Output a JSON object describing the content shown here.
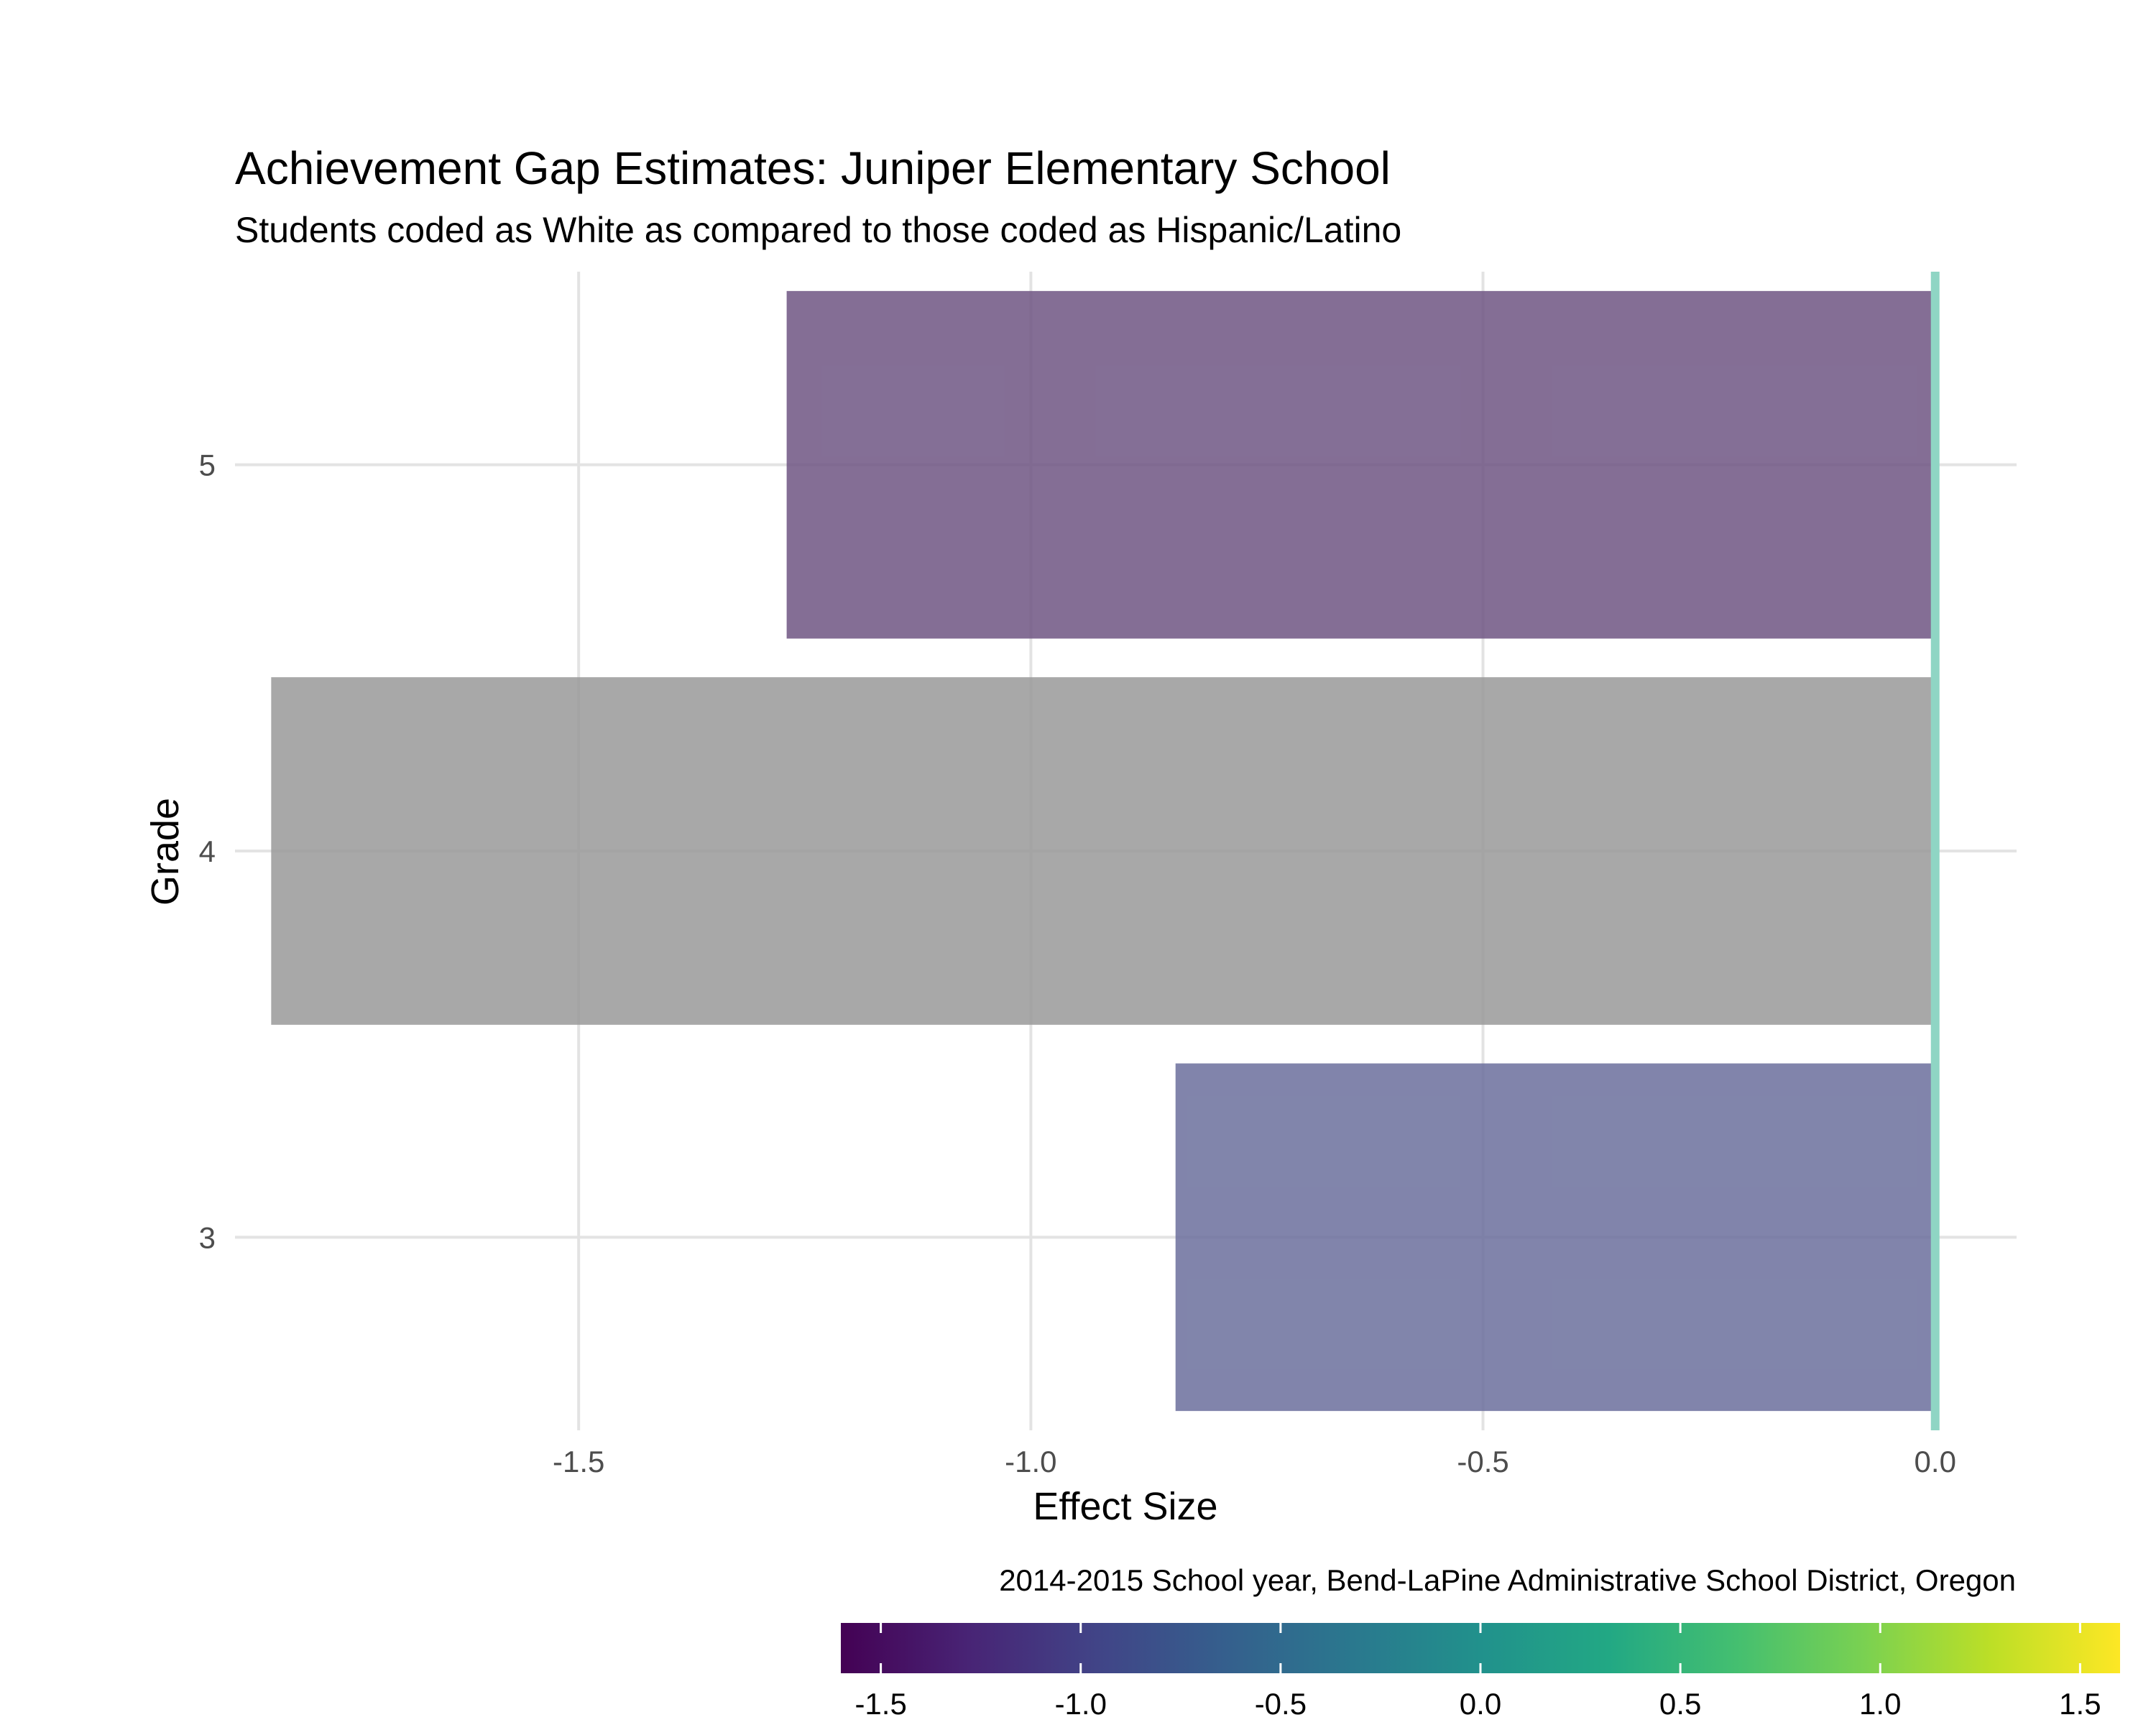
{
  "chart_data": {
    "type": "bar",
    "orientation": "horizontal",
    "title": "Achievement Gap Estimates: Juniper Elementary School",
    "subtitle": "Students coded as White as compared to those coded as Hispanic/Latino",
    "xlabel": "Effect Size",
    "ylabel": "Grade",
    "caption": "2014-2015 School year, Bend-LaPine Administrative School District, Oregon",
    "categories": [
      "3",
      "4",
      "5"
    ],
    "values": [
      -0.84,
      -1.84,
      -1.27
    ],
    "bar_colors": [
      "#6b6f9c",
      "#999999",
      "#6e5583"
    ],
    "bar_opacity": 0.85,
    "xlim": [
      -1.88,
      0.09
    ],
    "x_ticks": [
      -1.5,
      -1.0,
      -0.5,
      0.0
    ],
    "x_tick_labels": [
      "-1.5",
      "-1.0",
      "-0.5",
      "0.0"
    ],
    "reference_line": {
      "x": 0.0,
      "color": "#8fd5c4"
    },
    "grid": true,
    "colorbar": {
      "palette": "viridis",
      "range": [
        -1.6,
        1.6
      ],
      "ticks": [
        -1.5,
        -1.0,
        -0.5,
        0.0,
        0.5,
        1.0,
        1.5
      ],
      "tick_labels": [
        "-1.5",
        "-1.0",
        "-0.5",
        "0.0",
        "0.5",
        "1.0",
        "1.5"
      ],
      "position": "bottom"
    }
  }
}
